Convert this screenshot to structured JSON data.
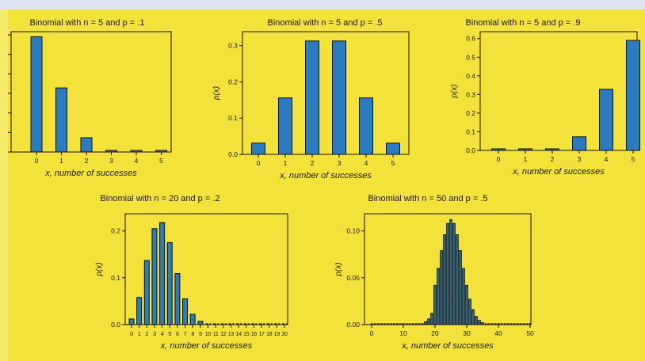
{
  "chart_data": [
    {
      "type": "bar",
      "title": "Binomial with n = 5 and p = .1",
      "xlabel": "x, number of successes",
      "ylabel": "",
      "x": [
        0,
        1,
        2,
        3,
        4,
        5
      ],
      "values": [
        0.59,
        0.328,
        0.073,
        0.008,
        0.0005,
        1e-05
      ],
      "xticks": [
        "0",
        "1",
        "2",
        "3",
        "4",
        "5"
      ],
      "yticks": [],
      "ylim": [
        0,
        0.6
      ]
    },
    {
      "type": "bar",
      "title": "Binomial with n = 5 and p = .5",
      "xlabel": "x, number of successes",
      "ylabel": "p(x)",
      "x": [
        0,
        1,
        2,
        3,
        4,
        5
      ],
      "values": [
        0.031,
        0.156,
        0.313,
        0.313,
        0.156,
        0.031
      ],
      "xticks": [
        "0",
        "1",
        "2",
        "3",
        "4",
        "5"
      ],
      "yticks": [
        "0.0",
        "0.1",
        "0.2",
        "0.3"
      ],
      "ylim": [
        0,
        0.33
      ]
    },
    {
      "type": "bar",
      "title": "Binomial with n = 5 and p = .9",
      "xlabel": "x, number of successes",
      "ylabel": "p(x)",
      "x": [
        0,
        1,
        2,
        3,
        4,
        5
      ],
      "values": [
        1e-05,
        0.0005,
        0.008,
        0.073,
        0.328,
        0.59
      ],
      "xticks": [
        "0",
        "1",
        "2",
        "3",
        "4",
        "5"
      ],
      "yticks": [
        "0.0",
        "0.1",
        "0.2",
        "0.3",
        "0.4",
        "0.5",
        "0.6"
      ],
      "ylim": [
        0,
        0.62
      ]
    },
    {
      "type": "bar",
      "title": "Binomial with n = 20 and p = .2",
      "xlabel": "x, number of successes",
      "ylabel": "p(x)",
      "x": [
        0,
        1,
        2,
        3,
        4,
        5,
        6,
        7,
        8,
        9,
        10,
        11,
        12,
        13,
        14,
        15,
        16,
        17,
        18,
        19,
        20
      ],
      "values": [
        0.012,
        0.058,
        0.137,
        0.205,
        0.218,
        0.175,
        0.109,
        0.055,
        0.022,
        0.007,
        0.002,
        0.0005,
        0.0001,
        0,
        0,
        0,
        0,
        0,
        0,
        0,
        0
      ],
      "xticks": [
        "0",
        "1",
        "2",
        "3",
        "4",
        "5",
        "6",
        "7",
        "8",
        "9",
        "10",
        "11",
        "12",
        "13",
        "14",
        "15",
        "16",
        "17",
        "18",
        "19",
        "20"
      ],
      "yticks": [
        "0.0",
        "0.1",
        "0.2"
      ],
      "ylim": [
        0,
        0.23
      ]
    },
    {
      "type": "bar",
      "title": "Binomial with n = 50 and p = .5",
      "xlabel": "x, number of successes",
      "ylabel": "p(x)",
      "x": [
        0,
        1,
        2,
        3,
        4,
        5,
        6,
        7,
        8,
        9,
        10,
        11,
        12,
        13,
        14,
        15,
        16,
        17,
        18,
        19,
        20,
        21,
        22,
        23,
        24,
        25,
        26,
        27,
        28,
        29,
        30,
        31,
        32,
        33,
        34,
        35,
        36,
        37,
        38,
        39,
        40,
        41,
        42,
        43,
        44,
        45,
        46,
        47,
        48,
        49,
        50
      ],
      "values": [
        0,
        0,
        0,
        0,
        0,
        0,
        0,
        0,
        0,
        0,
        0,
        0,
        0,
        0,
        0.0001,
        0.0005,
        0.0012,
        0.003,
        0.006,
        0.012,
        0.042,
        0.06,
        0.079,
        0.096,
        0.108,
        0.112,
        0.108,
        0.096,
        0.079,
        0.06,
        0.042,
        0.027,
        0.016,
        0.0087,
        0.0044,
        0.002,
        0.0008,
        0.0003,
        0.0001,
        0,
        0,
        0,
        0,
        0,
        0,
        0,
        0,
        0,
        0,
        0,
        0
      ],
      "xticks": [
        "0",
        "10",
        "20",
        "30",
        "40",
        "50"
      ],
      "yticks": [
        "0.00",
        "0.05",
        "0.10"
      ],
      "ylim": [
        0,
        0.115
      ]
    }
  ]
}
